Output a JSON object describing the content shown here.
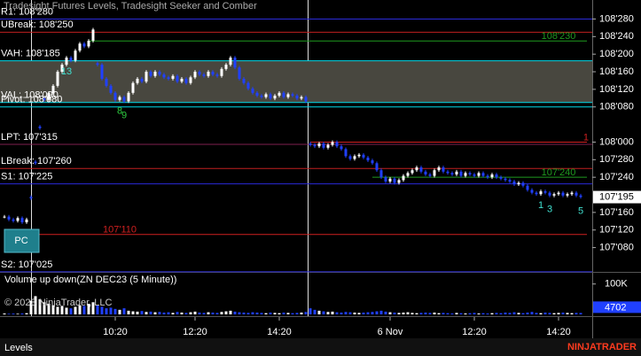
{
  "chart_data": {
    "type": "candlestick",
    "title": "Tradesight Futures Levels, Tradesight Seeker and Comber",
    "volume_title": "Volume up down(ZN DEC23 (5 Minute))",
    "copyright": "© 2023 NinjaTrader, LLC",
    "tab": "Levels",
    "logo": "NINJATRADER",
    "badge": "PC",
    "ylim": [
      107.09,
      109.01
    ],
    "yticks": [
      {
        "value": 108.875,
        "label": "108'280"
      },
      {
        "value": 108.75,
        "label": "108'240"
      },
      {
        "value": 108.625,
        "label": "108'200"
      },
      {
        "value": 108.5,
        "label": "108'160"
      },
      {
        "value": 108.375,
        "label": "108'120"
      },
      {
        "value": 108.25,
        "label": "108'080"
      },
      {
        "value": 108.0,
        "label": "108'000"
      },
      {
        "value": 107.875,
        "label": "107'280"
      },
      {
        "value": 107.75,
        "label": "107'240"
      },
      {
        "value": 107.5,
        "label": "107'160"
      },
      {
        "value": 107.375,
        "label": "107'120"
      },
      {
        "value": 107.25,
        "label": "107'080"
      }
    ],
    "last_price": {
      "value": 107.609,
      "label": "107'195"
    },
    "xticks": [
      {
        "value": 25,
        "label": "10:20"
      },
      {
        "value": 43,
        "label": "12:20"
      },
      {
        "value": 62,
        "label": "14:20"
      },
      {
        "value": 87,
        "label": "6 Nov"
      },
      {
        "value": 106,
        "label": "12:20"
      },
      {
        "value": 125,
        "label": "14:20"
      }
    ],
    "value_area": {
      "high": 108.578,
      "low": 108.281,
      "color": "#48473f"
    },
    "levels": [
      {
        "label": "R1: 108'280",
        "value": 108.875,
        "color": "#2a2ad8"
      },
      {
        "label": "UBreak: 108'250",
        "value": 108.78125,
        "color": "#c02020"
      },
      {
        "label": "VAH: 108'185",
        "value": 108.578,
        "color": "#00d8e8"
      },
      {
        "label": "VAL: 108'090",
        "value": 108.281,
        "color": "#00d8e8"
      },
      {
        "label": "Pivot: 108'080",
        "value": 108.25,
        "color": "#00d8e8"
      },
      {
        "label": "LPT: 107'315",
        "value": 107.984,
        "color": "#802050"
      },
      {
        "label": "LBreak: 107'260",
        "value": 107.8125,
        "color": "#c02020"
      },
      {
        "label": "S1: 107'225",
        "value": 107.703,
        "color": "#2a2ad8"
      },
      {
        "label": "S2: 107'025",
        "value": 107.078,
        "color": "#2a2ad8"
      }
    ],
    "markers": [
      {
        "label": "108'230",
        "value": 108.71875,
        "color": "#1f9a1f",
        "from": 19
      },
      {
        "label": "107'240",
        "value": 107.75,
        "color": "#1f9a1f",
        "from": 83
      },
      {
        "label": "107'110",
        "value": 107.34375,
        "color": "#d02020",
        "from": 6
      },
      {
        "label": "1",
        "value": 108.0,
        "color": "#d02020",
        "from": 69
      }
    ],
    "annotations": [
      {
        "text": "13",
        "bar": 14,
        "color": "#40e0d0"
      },
      {
        "text": "8",
        "bar": 26,
        "color": "#2ecc40"
      },
      {
        "text": "9",
        "bar": 27,
        "color": "#2ecc40"
      },
      {
        "text": "1",
        "bar": 121,
        "color": "#40e0d0"
      },
      {
        "text": "3",
        "bar": 123,
        "color": "#40e0d0"
      },
      {
        "text": "5",
        "bar": 130,
        "color": "#40e0d0"
      }
    ],
    "series": [
      {
        "name": "ZN DEC23",
        "color": "#ffffff",
        "down_color": "#2040ff",
        "values": [
          107.47,
          107.45,
          107.44,
          107.46,
          107.43,
          107.45,
          107.6,
          107.85,
          108.1,
          108.3,
          108.35,
          108.4,
          108.5,
          108.55,
          108.6,
          108.58,
          108.65,
          108.7,
          108.68,
          108.72,
          108.8,
          108.55,
          108.45,
          108.4,
          108.35,
          108.3,
          108.32,
          108.29,
          108.35,
          108.42,
          108.45,
          108.43,
          108.5,
          108.47,
          108.5,
          108.48,
          108.46,
          108.45,
          108.47,
          108.43,
          108.45,
          108.42,
          108.46,
          108.5,
          108.48,
          108.47,
          108.5,
          108.48,
          108.47,
          108.52,
          108.55,
          108.6,
          108.53,
          108.45,
          108.42,
          108.38,
          108.35,
          108.33,
          108.32,
          108.34,
          108.31,
          108.33,
          108.35,
          108.32,
          108.34,
          108.33,
          108.31,
          108.32,
          108.29,
          107.98,
          107.97,
          107.99,
          107.96,
          107.98,
          108.0,
          107.97,
          107.95,
          107.9,
          107.88,
          107.9,
          107.91,
          107.89,
          107.87,
          107.85,
          107.8,
          107.75,
          107.72,
          107.74,
          107.71,
          107.73,
          107.76,
          107.78,
          107.8,
          107.82,
          107.79,
          107.77,
          107.76,
          107.8,
          107.82,
          107.79,
          107.78,
          107.77,
          107.79,
          107.76,
          107.78,
          107.77,
          107.76,
          107.78,
          107.76,
          107.75,
          107.77,
          107.75,
          107.74,
          107.73,
          107.72,
          107.7,
          107.71,
          107.69,
          107.66,
          107.64,
          107.63,
          107.65,
          107.64,
          107.62,
          107.63,
          107.64,
          107.62,
          107.63,
          107.64,
          107.62,
          107.61
        ]
      }
    ],
    "volume": {
      "ylim": [
        0,
        137000
      ],
      "yticks": [
        {
          "value": 100000,
          "label": "100K"
        }
      ],
      "last": 4702,
      "values": [
        3000,
        2000,
        2500,
        2000,
        3000,
        4000,
        45000,
        60000,
        50000,
        40000,
        35000,
        30000,
        25000,
        28000,
        22000,
        20000,
        25000,
        30000,
        28000,
        35000,
        40000,
        30000,
        25000,
        20000,
        22000,
        18000,
        15000,
        20000,
        12000,
        10000,
        9000,
        11000,
        8000,
        9000,
        7000,
        8000,
        6000,
        7000,
        5000,
        8000,
        6000,
        5000,
        7000,
        9000,
        6000,
        5000,
        7000,
        6000,
        5000,
        8000,
        10000,
        12000,
        9000,
        7000,
        6000,
        5000,
        7000,
        6000,
        5000,
        4000,
        6000,
        5000,
        4000,
        6000,
        5000,
        4000,
        5000,
        6000,
        8000,
        20000,
        15000,
        12000,
        10000,
        8000,
        9000,
        7000,
        6000,
        8000,
        7000,
        6000,
        5000,
        6000,
        7000,
        8000,
        10000,
        12000,
        9000,
        7000,
        6000,
        5000,
        6000,
        7000,
        5000,
        4000,
        5000,
        6000,
        5000,
        6000,
        4000,
        5000,
        4000,
        3000,
        5000,
        4000,
        3000,
        4000,
        5000,
        3000,
        4000,
        3000,
        4000,
        5000,
        4000,
        6000,
        5000,
        7000,
        5000,
        4000,
        6000,
        8000,
        5000,
        4000,
        6000,
        5000,
        4000,
        5000,
        6000,
        5000,
        4000,
        5000,
        4702
      ]
    }
  }
}
